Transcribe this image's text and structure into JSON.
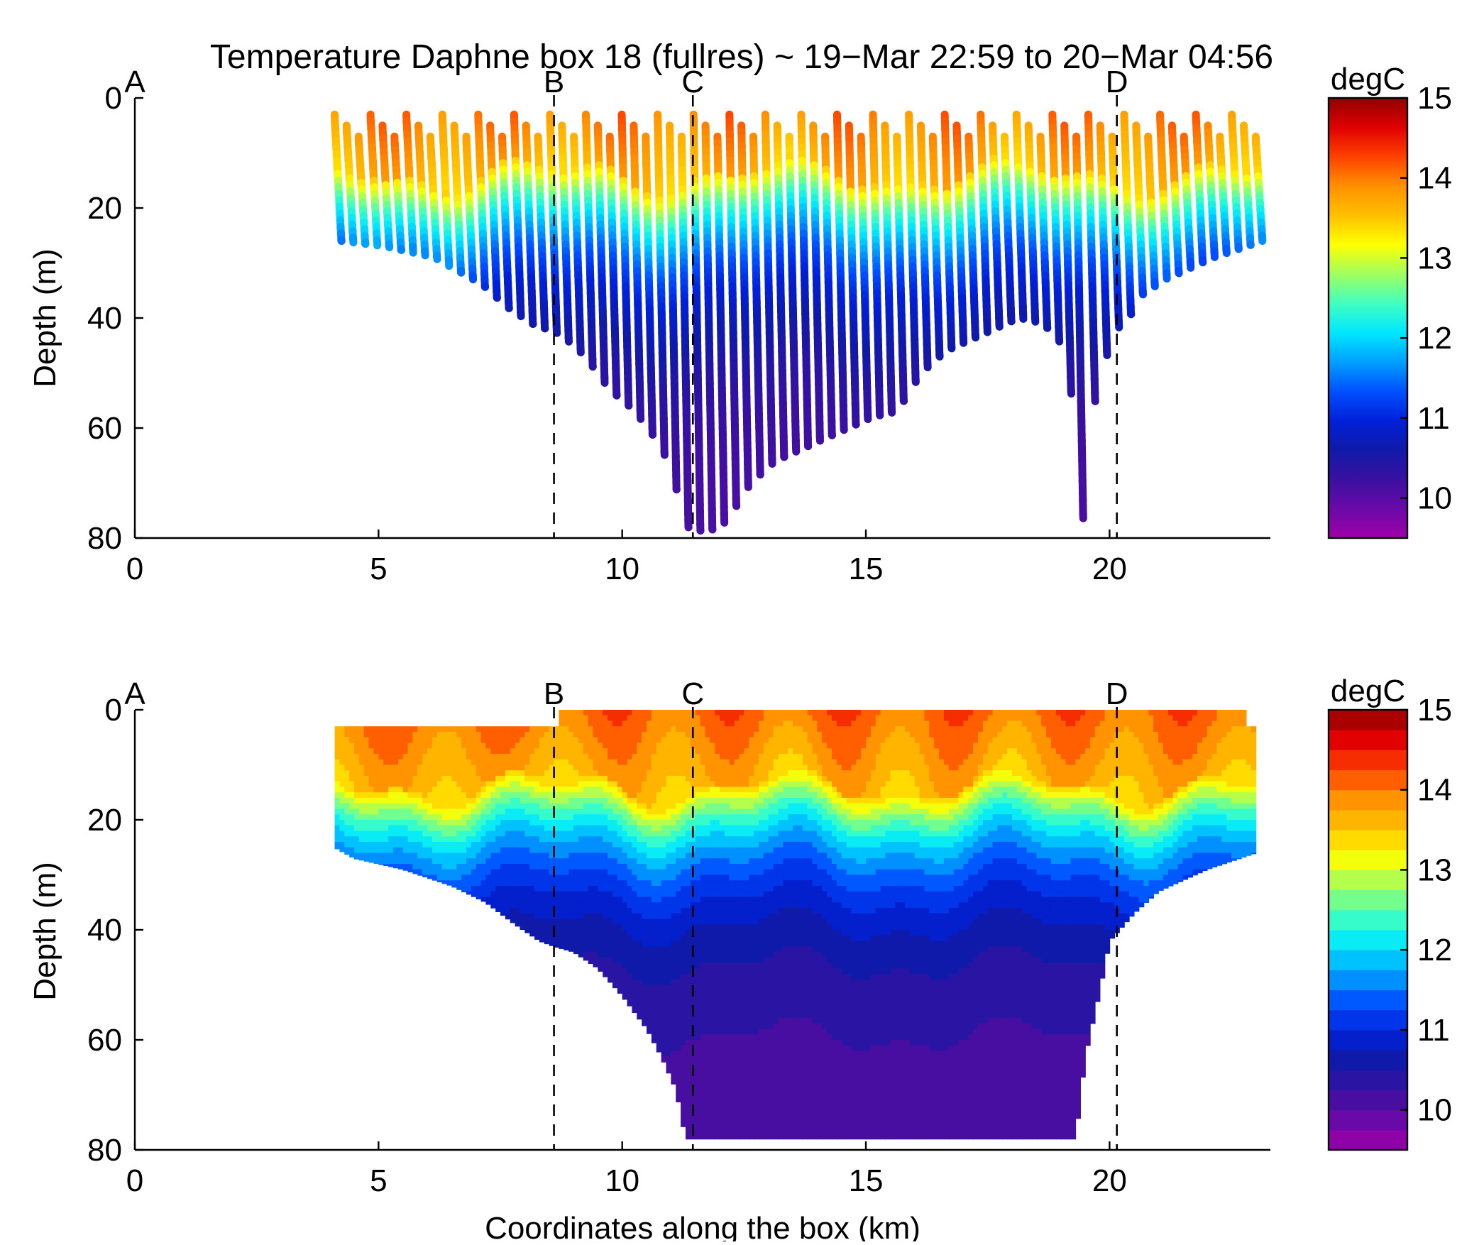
{
  "title": "Temperature Daphne box 18 (fullres) ~ 19−Mar 22:59 to 20−Mar 04:56",
  "xlabel": "Coordinates along the box (km)",
  "colors": {
    "jet": [
      "#a000a8",
      "#6a0aa8",
      "#3a10a0",
      "#101aa8",
      "#0020d8",
      "#0050ff",
      "#00a0ff",
      "#00e8ff",
      "#40ffc0",
      "#a0ff60",
      "#ffff00",
      "#ffc000",
      "#ff9000",
      "#ff4000",
      "#e00000",
      "#900000"
    ],
    "marker": "#000000",
    "axis": "#000000",
    "background": "#ffffff"
  },
  "chart_data": [
    {
      "type": "scatter",
      "panel": "top",
      "variant": "profile-casts",
      "xlabel": "",
      "ylabel": "Depth (m)",
      "xlim": [
        0,
        23.3
      ],
      "ylim": [
        80,
        0
      ],
      "xticks": [
        "0",
        "5",
        "10",
        "15",
        "20"
      ],
      "yticks": [
        "0",
        "20",
        "40",
        "60",
        "80"
      ],
      "section_markers": [
        {
          "label": "A",
          "x": 0
        },
        {
          "label": "B",
          "x": 8.6
        },
        {
          "label": "C",
          "x": 11.45
        },
        {
          "label": "D",
          "x": 20.15
        }
      ],
      "colorbar": {
        "label": "degC",
        "range": [
          9.5,
          15
        ],
        "ticks": [
          "10",
          "11",
          "12",
          "13",
          "14",
          "15"
        ],
        "continuous": true
      },
      "bottom_depth_profile": {
        "x": [
          4.1,
          5.0,
          6.0,
          7.0,
          7.5,
          8.0,
          8.6,
          9.1,
          9.6,
          10.0,
          10.4,
          10.8,
          11.2,
          11.6,
          12.0,
          12.5,
          13.0,
          13.5,
          14.0,
          14.5,
          15.0,
          15.5,
          16.0,
          16.5,
          17.0,
          17.5,
          18.0,
          18.5,
          19.0,
          19.3,
          19.6,
          20.0,
          20.2,
          20.5,
          21.0,
          22.0,
          23.0
        ],
        "depth": [
          26,
          27,
          29,
          34,
          38,
          41,
          43,
          47,
          53,
          56,
          60,
          66,
          78,
          79,
          77,
          70,
          66,
          64,
          62,
          60,
          58,
          57,
          50,
          46,
          44,
          42,
          40,
          41,
          46,
          78,
          52,
          42,
          41,
          36,
          33,
          29,
          26
        ]
      },
      "cast_x_range": [
        4.1,
        23.0
      ],
      "cast_count": 78
    },
    {
      "type": "heatmap",
      "panel": "bottom",
      "variant": "filled-contour",
      "xlabel": "Coordinates along the box (km)",
      "ylabel": "Depth (m)",
      "xlim": [
        0,
        23.3
      ],
      "ylim": [
        80,
        0
      ],
      "xticks": [
        "0",
        "5",
        "10",
        "15",
        "20"
      ],
      "yticks": [
        "0",
        "20",
        "40",
        "60",
        "80"
      ],
      "section_markers": [
        {
          "label": "A",
          "x": 0
        },
        {
          "label": "B",
          "x": 8.6
        },
        {
          "label": "C",
          "x": 11.45
        },
        {
          "label": "D",
          "x": 20.15
        }
      ],
      "colorbar": {
        "label": "degC",
        "range": [
          9.5,
          15
        ],
        "ticks": [
          "10",
          "11",
          "12",
          "13",
          "14",
          "15"
        ],
        "continuous": false,
        "levels": 22
      },
      "bottom_boundary": {
        "x": [
          4.1,
          4.5,
          5.5,
          6.5,
          7.2,
          7.8,
          8.3,
          8.6,
          9.0,
          9.5,
          10.0,
          10.5,
          10.8,
          11.1,
          11.3,
          12.5,
          14.0,
          16.0,
          18.0,
          19.3,
          19.5,
          19.8,
          20.0,
          20.5,
          21.0,
          22.0,
          23.0
        ],
        "depth": [
          25,
          27,
          29,
          32,
          35,
          39,
          42,
          43,
          44,
          47,
          52,
          58,
          63,
          69,
          78,
          78,
          78,
          78,
          78,
          78,
          63,
          51,
          42,
          37,
          33,
          29,
          26
        ]
      }
    }
  ]
}
